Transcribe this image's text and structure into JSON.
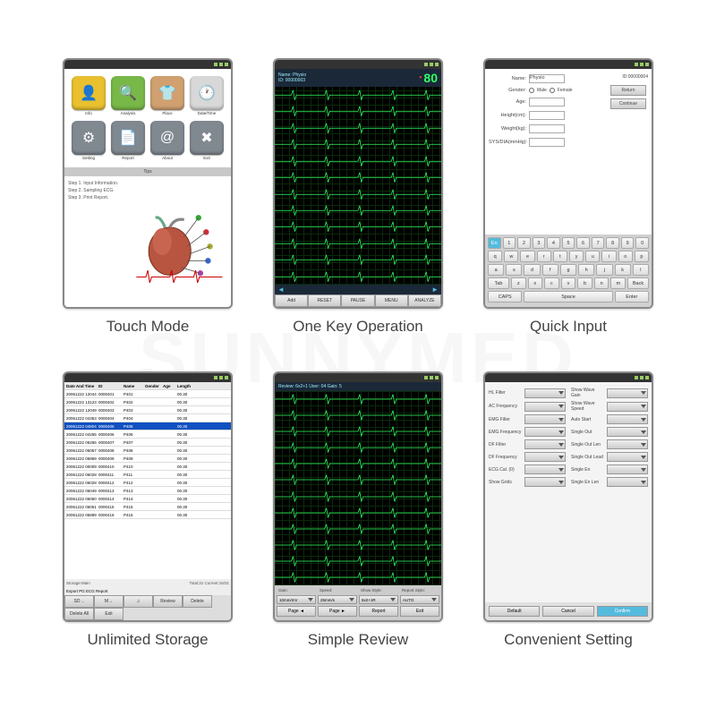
{
  "watermark": "SUNNYMED",
  "captions": [
    "Touch Mode",
    "One Key Operation",
    "Quick Input",
    "Unlimited Storage",
    "Simple Review",
    "Convenient Setting"
  ],
  "touch": {
    "icons": [
      {
        "label": "Info",
        "glyph": "👤",
        "bg": "#e8c030"
      },
      {
        "label": "Analysis",
        "glyph": "🔍",
        "bg": "#78b848"
      },
      {
        "label": "Place",
        "glyph": "👕",
        "bg": "#d0a070"
      },
      {
        "label": "Date/Time",
        "glyph": "🕐",
        "bg": "#d8d8d8"
      },
      {
        "label": "Setting",
        "glyph": "⚙",
        "bg": "#808890"
      },
      {
        "label": "Report",
        "glyph": "📄",
        "bg": "#808890"
      },
      {
        "label": "About",
        "glyph": "@",
        "bg": "#808890"
      },
      {
        "label": "Exit",
        "glyph": "✖",
        "bg": "#808890"
      }
    ],
    "tips_title": "Tips",
    "steps": [
      "Step 1. Input Information.",
      "Step 2. Sampling ECG.",
      "Step 3. Print Report."
    ]
  },
  "ecg": {
    "name_label": "Name: Physio",
    "id_label": "ID: 00000003",
    "hr": "80",
    "trace_color": "#30ff60",
    "buttons": [
      "Add",
      "RESET",
      "PAUSE",
      "MENU",
      "ANALYZE"
    ]
  },
  "quickinput": {
    "id_value": "ID:00000004",
    "fields": [
      {
        "label": "Name:",
        "value": "Physio"
      },
      {
        "label": "Gender:",
        "radios": [
          "Male",
          "Female"
        ]
      },
      {
        "label": "Age:",
        "value": ""
      },
      {
        "label": "Height(cm):",
        "value": ""
      },
      {
        "label": "Weight(kg):",
        "value": ""
      },
      {
        "label": "SYS/DIA(mmHg):",
        "value": ""
      }
    ],
    "side_buttons": [
      "Return",
      "Continue"
    ],
    "keyboard": {
      "row1": [
        "En",
        "1",
        "2",
        "3",
        "4",
        "5",
        "6",
        "7",
        "8",
        "9",
        "0"
      ],
      "row2": [
        "q",
        "w",
        "e",
        "r",
        "t",
        "y",
        "u",
        "i",
        "o",
        "p"
      ],
      "row3": [
        "a",
        "s",
        "d",
        "f",
        "g",
        "h",
        "j",
        "k",
        "l"
      ],
      "row4": [
        "Tab",
        "z",
        "x",
        "c",
        "v",
        "b",
        "n",
        "m",
        "Back"
      ],
      "row5": [
        "CAPS",
        "Space",
        "Enter"
      ]
    }
  },
  "storage": {
    "columns": [
      "Date And Time",
      "ID",
      "Name",
      "Gender",
      "Age",
      "Length"
    ],
    "rows": [
      [
        "20061222 12044",
        "0000401",
        "P401",
        "",
        "",
        "00.30"
      ],
      [
        "20061222 13123",
        "0000402",
        "P402",
        "",
        "",
        "00.30"
      ],
      [
        "20061222 12049",
        "0000403",
        "P403",
        "",
        "",
        "00.30"
      ],
      [
        "20061222 04353",
        "0000404",
        "P404",
        "",
        "",
        "00.30"
      ],
      [
        "20061222 04804",
        "0000405",
        "P405",
        "",
        "",
        "00.30"
      ],
      [
        "20061222 04255",
        "0000406",
        "P406",
        "",
        "",
        "00.30"
      ],
      [
        "20061222 06256",
        "0000407",
        "P407",
        "",
        "",
        "00.30"
      ],
      [
        "20061222 05057",
        "0000408",
        "P408",
        "",
        "",
        "00.30"
      ],
      [
        "20061222 05859",
        "0000409",
        "P409",
        "",
        "",
        "00.30"
      ],
      [
        "20061222 00009",
        "0000410",
        "P410",
        "",
        "",
        "00.30"
      ],
      [
        "20061222 06028",
        "0000411",
        "P411",
        "",
        "",
        "00.30"
      ],
      [
        "20061222 06028",
        "0000412",
        "P412",
        "",
        "",
        "00.30"
      ],
      [
        "20061222 06049",
        "0000413",
        "P413",
        "",
        "",
        "00.30"
      ],
      [
        "20061222 06050",
        "0000414",
        "P414",
        "",
        "",
        "00.30"
      ],
      [
        "20061222 06051",
        "0000415",
        "P415",
        "",
        "",
        "00.30"
      ],
      [
        "20061222 06889",
        "0000416",
        "P416",
        "",
        "",
        "00.30"
      ]
    ],
    "selected": 4,
    "footer_left": "Storage:Main",
    "footer_right": "Total:31    Current:15/31",
    "export_label": "Export  PG ECG Report",
    "buttons": [
      "SD→",
      "M→",
      "♫",
      "Review",
      "Delete",
      "Delete All",
      "Exit"
    ]
  },
  "review": {
    "header": "Review: 6x2+1 User: 04  Gain: 5",
    "ctrl_labels": [
      "Gain:",
      "Speed:",
      "Show Style:",
      "Report Style:"
    ],
    "ctrl_values": [
      "10mm/mV",
      "25mm/s",
      "6x2+1R",
      "AUTO"
    ],
    "buttons": [
      "Page ◄",
      "Page ►",
      "Report",
      "Exit"
    ]
  },
  "settings": {
    "left": [
      {
        "label": "HL Filter"
      },
      {
        "label": "AC Frequency"
      },
      {
        "label": "EMG Filter"
      },
      {
        "label": "EMG Frequency"
      },
      {
        "label": "DF Filter"
      },
      {
        "label": "DF Frequency"
      },
      {
        "label": "ECG Cal. (0)"
      },
      {
        "label": "Show Grids"
      }
    ],
    "right": [
      {
        "label": "Show Wave Gain"
      },
      {
        "label": "Show Wave Speed"
      },
      {
        "label": "Auto Start"
      },
      {
        "label": "Single Out"
      },
      {
        "label": "Single Out Len"
      },
      {
        "label": "Single Out Lead"
      },
      {
        "label": "Single En"
      },
      {
        "label": "Single En Len"
      }
    ],
    "footer": [
      "Default",
      "Cancel",
      "Confirm"
    ]
  }
}
